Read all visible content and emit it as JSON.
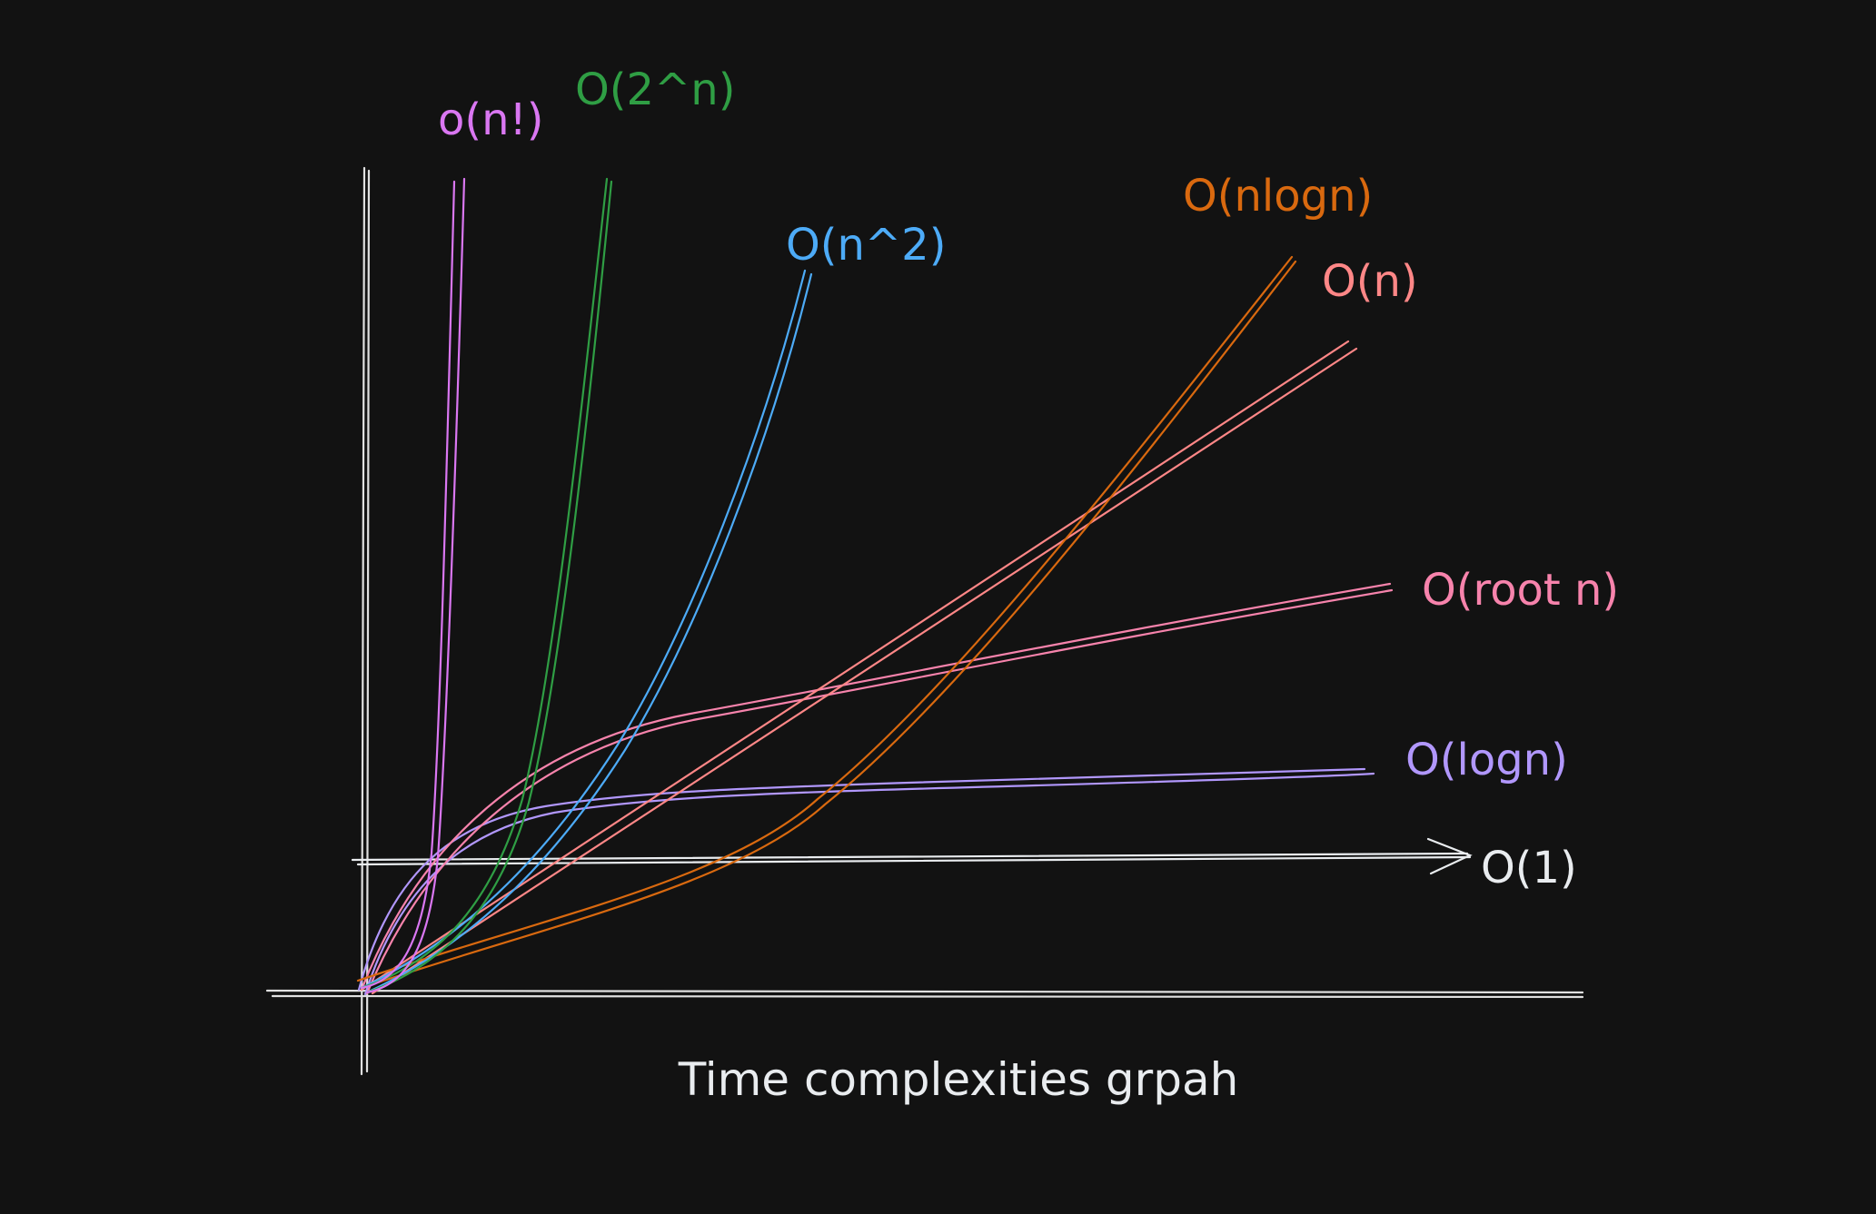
{
  "caption": "Time complexities grpah",
  "colors": {
    "background": "#121212",
    "axis": "#e0e0e0"
  },
  "curves": [
    {
      "id": "factorial",
      "label": "o(n!)",
      "color": "#da77f2"
    },
    {
      "id": "exponential",
      "label": "O(2^n)",
      "color": "#2f9e44"
    },
    {
      "id": "quadratic",
      "label": "O(n^2)",
      "color": "#4dabf7"
    },
    {
      "id": "nlogn",
      "label": "O(nlogn)",
      "color": "#d9690f"
    },
    {
      "id": "linear",
      "label": "O(n)",
      "color": "#ff8787"
    },
    {
      "id": "sqrt",
      "label": "O(root n)",
      "color": "#f783ac"
    },
    {
      "id": "log",
      "label": "O(logn)",
      "color": "#b197fc"
    },
    {
      "id": "constant",
      "label": "O(1)",
      "color": "#e9ecef"
    }
  ]
}
